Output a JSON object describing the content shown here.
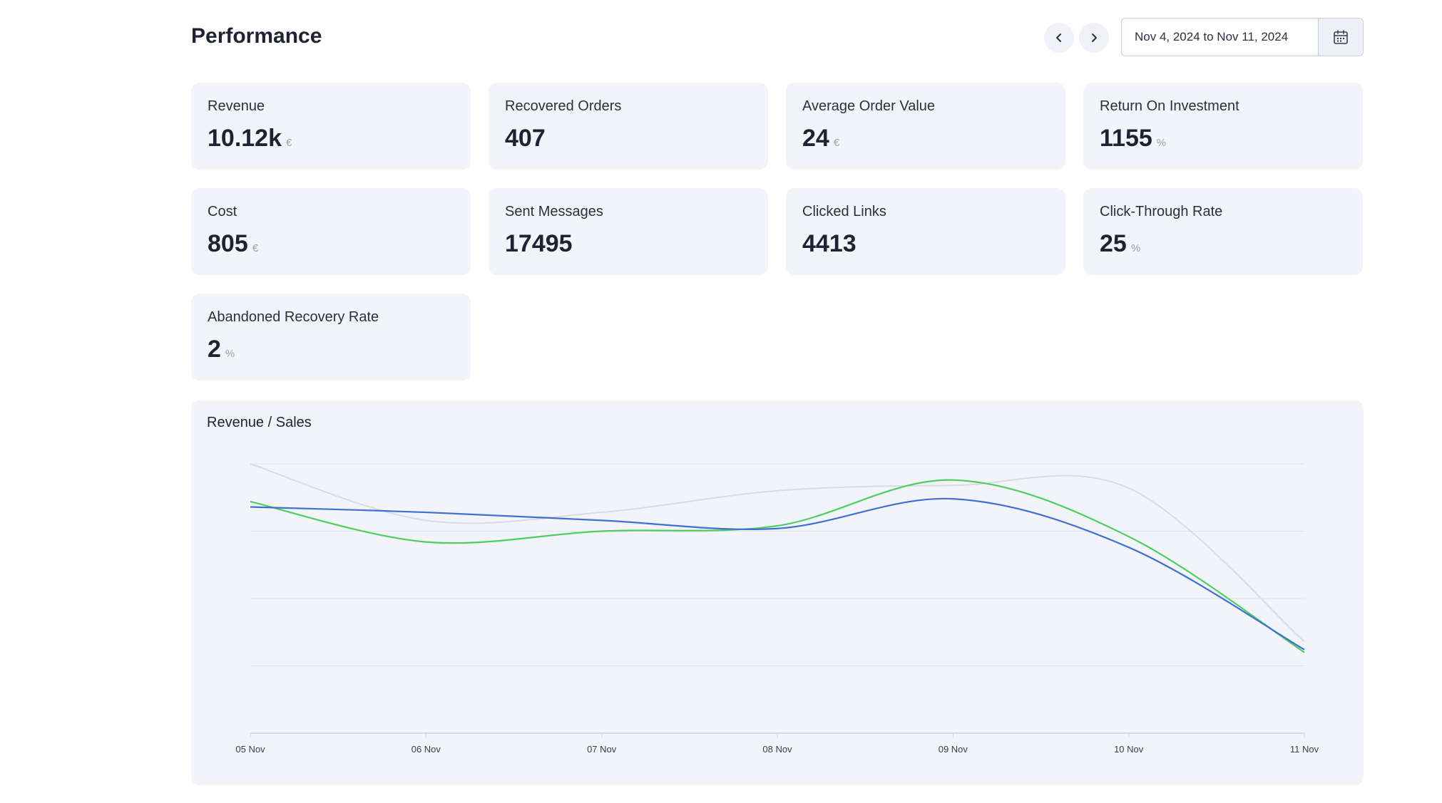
{
  "header": {
    "title": "Performance",
    "date_range": "Nov 4, 2024 to Nov 11, 2024"
  },
  "metrics": [
    {
      "label": "Revenue",
      "value": "10.12k",
      "unit": "€"
    },
    {
      "label": "Recovered Orders",
      "value": "407",
      "unit": ""
    },
    {
      "label": "Average Order Value",
      "value": "24",
      "unit": "€"
    },
    {
      "label": "Return On Investment",
      "value": "1155",
      "unit": "%"
    },
    {
      "label": "Cost",
      "value": "805",
      "unit": "€"
    },
    {
      "label": "Sent Messages",
      "value": "17495",
      "unit": ""
    },
    {
      "label": "Clicked Links",
      "value": "4413",
      "unit": ""
    },
    {
      "label": "Click-Through Rate",
      "value": "25",
      "unit": "%"
    },
    {
      "label": "Abandoned Recovery Rate",
      "value": "2",
      "unit": "%"
    }
  ],
  "chart_data": {
    "type": "line",
    "title": "Revenue / Sales",
    "categories": [
      "05 Nov",
      "06 Nov",
      "07 Nov",
      "08 Nov",
      "09 Nov",
      "10 Nov",
      "11 Nov"
    ],
    "ylim": [
      0,
      100
    ],
    "grid": true,
    "series": [
      {
        "color": "#d9dbe3",
        "values": [
          100,
          79,
          82,
          90,
          92,
          91,
          34
        ]
      },
      {
        "color": "#4ccf60",
        "values": [
          86,
          71,
          75,
          77,
          94,
          73,
          30
        ]
      },
      {
        "color": "#3f70d4",
        "values": [
          84,
          82,
          79,
          76,
          87,
          69,
          31
        ]
      }
    ]
  }
}
